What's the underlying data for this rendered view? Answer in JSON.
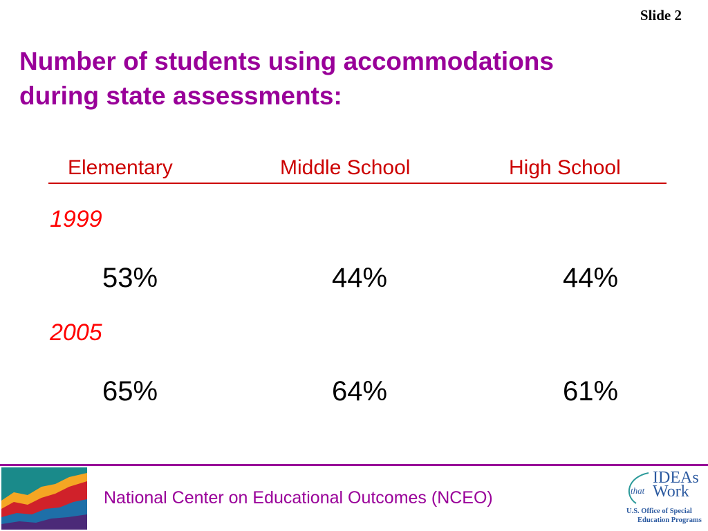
{
  "slide": {
    "number_label": "Slide 2",
    "title_line1": "Number of students using accommodations",
    "title_line2": "during state assessments:"
  },
  "table": {
    "columns": [
      "Elementary",
      "Middle School",
      "High School"
    ],
    "rows": [
      {
        "year": "1999",
        "values": [
          "53%",
          "44%",
          "44%"
        ]
      },
      {
        "year": "2005",
        "values": [
          "65%",
          "64%",
          "61%"
        ]
      }
    ]
  },
  "footer": {
    "organization": "National Center on Educational Outcomes (NCEO)",
    "logo_right": {
      "ideas": "IDEAs",
      "that": "that",
      "work": "Work",
      "office_line1": "U.S. Office of Special",
      "office_line2": "Education Programs"
    }
  },
  "colors": {
    "title": "#990099",
    "header": "#cc0000",
    "year": "#ff0000",
    "footer_rule": "#990099"
  }
}
